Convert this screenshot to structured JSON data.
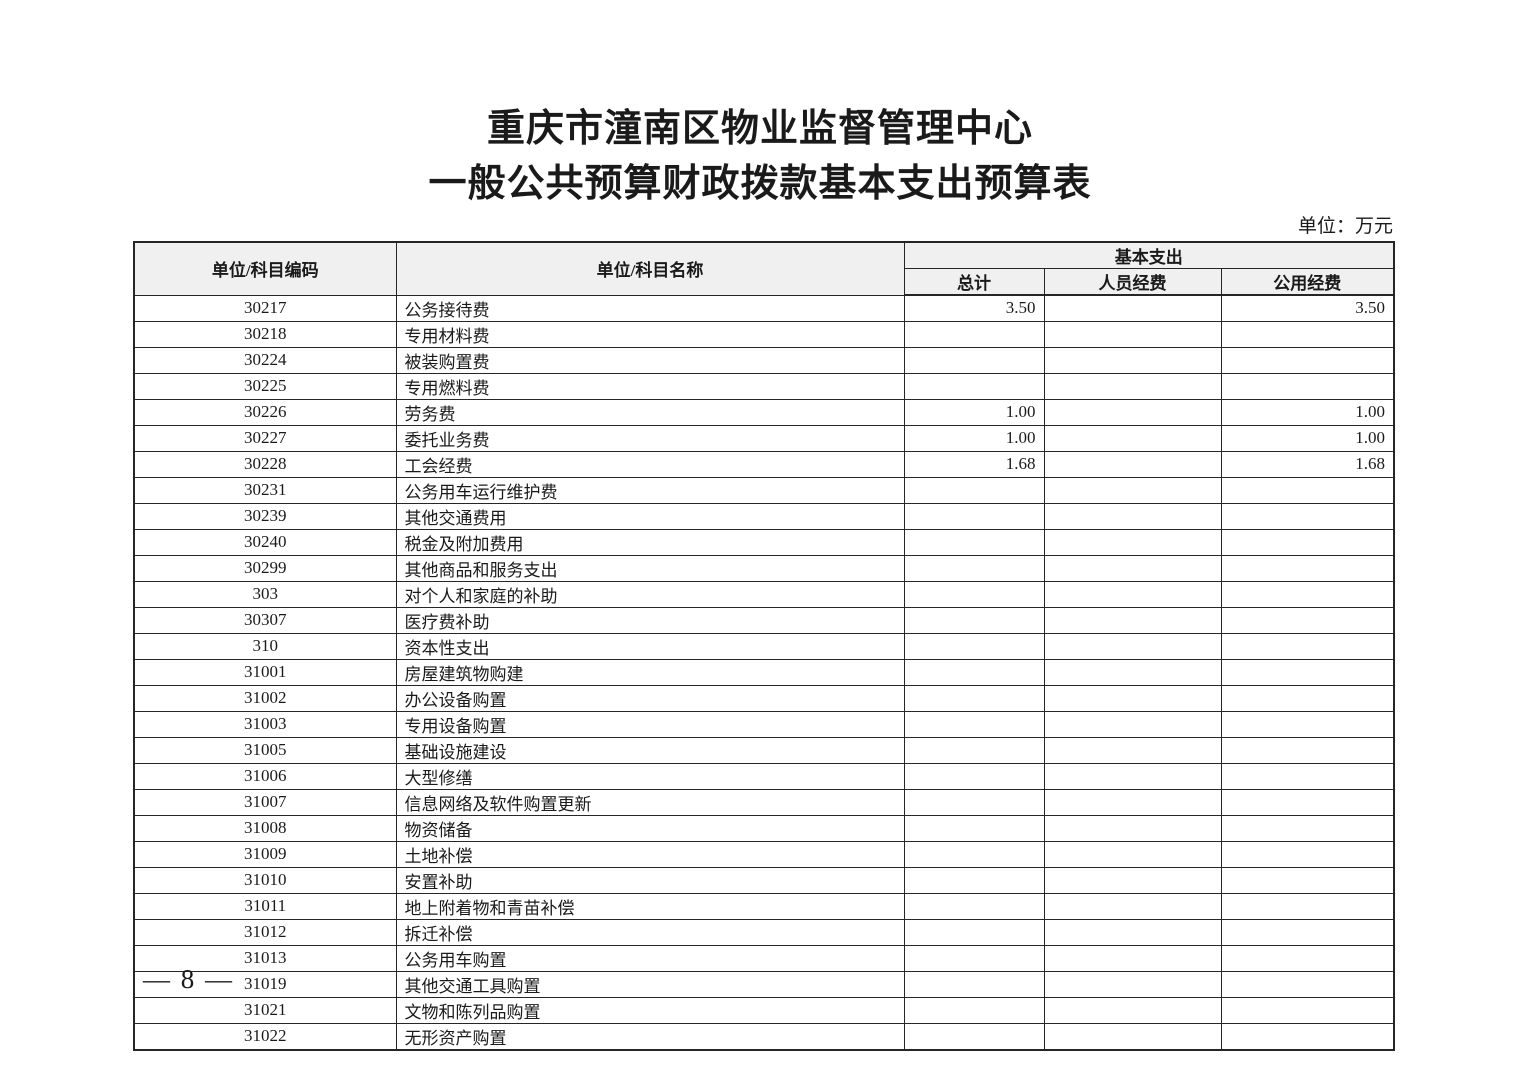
{
  "page": {
    "title_line1": "重庆市潼南区物业监督管理中心",
    "title_line2": "一般公共预算财政拨款基本支出预算表",
    "unit_note": "单位：万元",
    "page_number": "— 8 —"
  },
  "colors": {
    "header_background": "#f0f0f0",
    "border": "#262626",
    "text": "#1a1a1a"
  },
  "table": {
    "headers": {
      "code": "单位/科目编码",
      "name": "单位/科目名称",
      "group": "基本支出",
      "total": "总计",
      "personnel": "人员经费",
      "public": "公用经费"
    },
    "rows": [
      {
        "code": "30217",
        "name": "公务接待费",
        "total": "3.50",
        "personnel": "",
        "public": "3.50"
      },
      {
        "code": "30218",
        "name": "专用材料费",
        "total": "",
        "personnel": "",
        "public": ""
      },
      {
        "code": "30224",
        "name": "被装购置费",
        "total": "",
        "personnel": "",
        "public": ""
      },
      {
        "code": "30225",
        "name": "专用燃料费",
        "total": "",
        "personnel": "",
        "public": ""
      },
      {
        "code": "30226",
        "name": "劳务费",
        "total": "1.00",
        "personnel": "",
        "public": "1.00"
      },
      {
        "code": "30227",
        "name": "委托业务费",
        "total": "1.00",
        "personnel": "",
        "public": "1.00"
      },
      {
        "code": "30228",
        "name": "工会经费",
        "total": "1.68",
        "personnel": "",
        "public": "1.68"
      },
      {
        "code": "30231",
        "name": "公务用车运行维护费",
        "total": "",
        "personnel": "",
        "public": ""
      },
      {
        "code": "30239",
        "name": "其他交通费用",
        "total": "",
        "personnel": "",
        "public": ""
      },
      {
        "code": "30240",
        "name": "税金及附加费用",
        "total": "",
        "personnel": "",
        "public": ""
      },
      {
        "code": "30299",
        "name": "其他商品和服务支出",
        "total": "",
        "personnel": "",
        "public": ""
      },
      {
        "code": "303",
        "name": "对个人和家庭的补助",
        "total": "",
        "personnel": "",
        "public": ""
      },
      {
        "code": "30307",
        "name": "医疗费补助",
        "total": "",
        "personnel": "",
        "public": ""
      },
      {
        "code": "310",
        "name": "资本性支出",
        "total": "",
        "personnel": "",
        "public": ""
      },
      {
        "code": "31001",
        "name": "房屋建筑物购建",
        "total": "",
        "personnel": "",
        "public": ""
      },
      {
        "code": "31002",
        "name": "办公设备购置",
        "total": "",
        "personnel": "",
        "public": ""
      },
      {
        "code": "31003",
        "name": "专用设备购置",
        "total": "",
        "personnel": "",
        "public": ""
      },
      {
        "code": "31005",
        "name": "基础设施建设",
        "total": "",
        "personnel": "",
        "public": ""
      },
      {
        "code": "31006",
        "name": "大型修缮",
        "total": "",
        "personnel": "",
        "public": ""
      },
      {
        "code": "31007",
        "name": "信息网络及软件购置更新",
        "total": "",
        "personnel": "",
        "public": ""
      },
      {
        "code": "31008",
        "name": "物资储备",
        "total": "",
        "personnel": "",
        "public": ""
      },
      {
        "code": "31009",
        "name": "土地补偿",
        "total": "",
        "personnel": "",
        "public": ""
      },
      {
        "code": "31010",
        "name": "安置补助",
        "total": "",
        "personnel": "",
        "public": ""
      },
      {
        "code": "31011",
        "name": "地上附着物和青苗补偿",
        "total": "",
        "personnel": "",
        "public": ""
      },
      {
        "code": "31012",
        "name": "拆迁补偿",
        "total": "",
        "personnel": "",
        "public": ""
      },
      {
        "code": "31013",
        "name": "公务用车购置",
        "total": "",
        "personnel": "",
        "public": ""
      },
      {
        "code": "31019",
        "name": "其他交通工具购置",
        "total": "",
        "personnel": "",
        "public": ""
      },
      {
        "code": "31021",
        "name": "文物和陈列品购置",
        "total": "",
        "personnel": "",
        "public": ""
      },
      {
        "code": "31022",
        "name": "无形资产购置",
        "total": "",
        "personnel": "",
        "public": ""
      }
    ]
  }
}
